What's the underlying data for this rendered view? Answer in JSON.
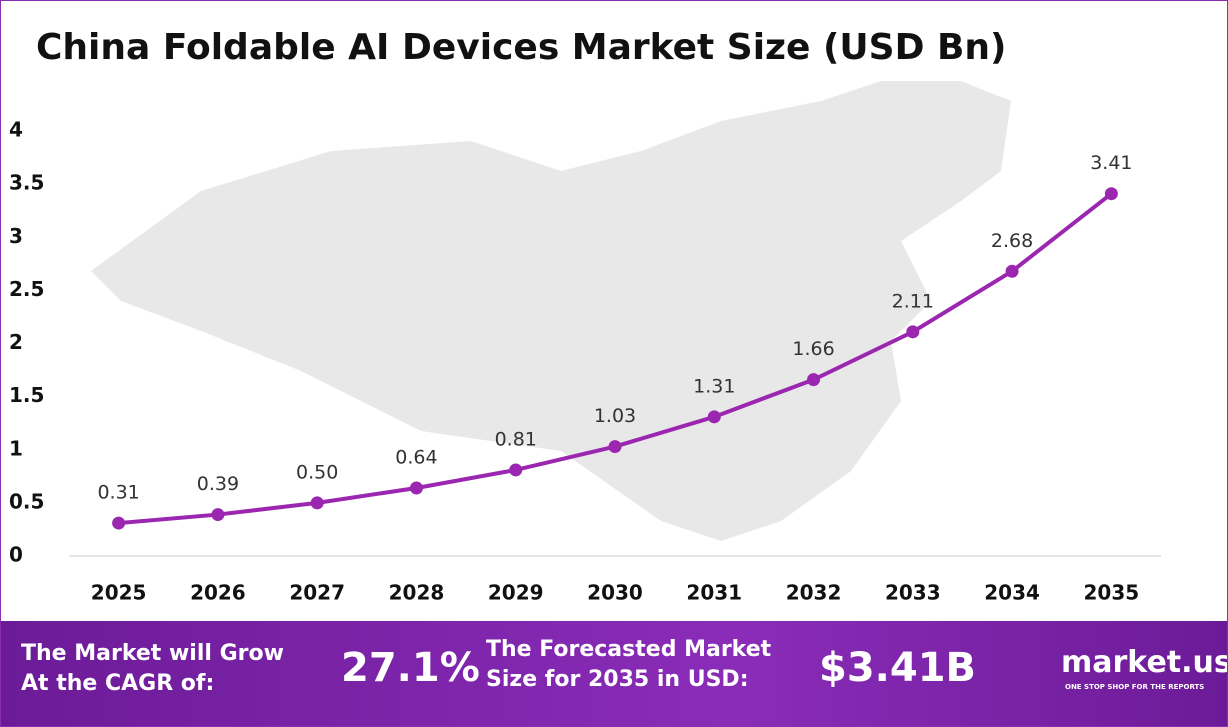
{
  "chart_data": {
    "type": "line",
    "title": "China Foldable AI Devices Market Size (USD Bn)",
    "categories": [
      "2025",
      "2026",
      "2027",
      "2028",
      "2029",
      "2030",
      "2031",
      "2032",
      "2033",
      "2034",
      "2035"
    ],
    "values": [
      0.31,
      0.39,
      0.5,
      0.64,
      0.81,
      1.03,
      1.31,
      1.66,
      2.11,
      2.68,
      3.41
    ],
    "value_labels": [
      "0.31",
      "0.39",
      "0.50",
      "0.64",
      "0.81",
      "1.03",
      "1.31",
      "1.66",
      "2.11",
      "2.68",
      "3.41"
    ],
    "color": "#9b27b0",
    "ylim": [
      0,
      4
    ],
    "yticks": [
      0,
      0.5,
      1,
      1.5,
      2,
      2.5,
      3,
      3.5,
      4
    ],
    "grid": false
  },
  "footer": {
    "cagr_text": [
      "The Market will Grow",
      "At the CAGR of:"
    ],
    "cagr_value": "27.1%",
    "forecast_text": [
      "The Forecasted Market",
      "Size for 2035 in USD:"
    ],
    "forecast_value": "$3.41B",
    "logo": "market.us",
    "tagline": "ONE STOP SHOP FOR THE REPORTS"
  }
}
